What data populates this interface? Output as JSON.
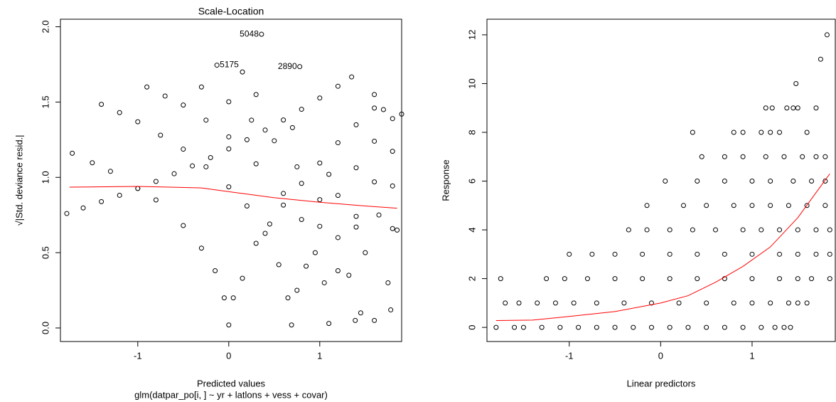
{
  "chart_data": [
    {
      "type": "scatter",
      "title": "Scale-Location",
      "xlabel": "Predicted values",
      "subtitle": "glm(datpar_po[i, ] ~ yr + latlons + vess + covar)",
      "ylabel": "√|Std. deviance resid.|",
      "xlim": [
        -1.85,
        1.9
      ],
      "ylim": [
        -0.09,
        2.05
      ],
      "xticks": [
        -1,
        0,
        1
      ],
      "yticks": [
        {
          "value": 0,
          "label": "0.0"
        },
        {
          "value": 0.5,
          "label": "0.5"
        },
        {
          "value": 1,
          "label": "1.0"
        },
        {
          "value": 1.5,
          "label": "1.5"
        },
        {
          "value": 2,
          "label": "2.0"
        }
      ],
      "color": "#000000",
      "x": [
        -1.78,
        -1.6,
        -1.4,
        -1.2,
        -1.0,
        -0.8,
        -0.6,
        -0.4,
        -0.2,
        0,
        0.2,
        0.4,
        0.6,
        0.8,
        1.0,
        1.2,
        1.35,
        -1.72,
        -1.5,
        -1.3,
        -1.0,
        -0.8,
        -0.5,
        -0.3,
        -0.15,
        -0.05,
        0,
        0.05,
        0.15,
        0.3,
        0.45,
        0.6,
        0.8,
        1.0,
        1.2,
        1.4,
        1.6,
        -1.4,
        -1.2,
        -1.0,
        -0.75,
        -0.5,
        -0.25,
        0,
        0.2,
        0.4,
        0.55,
        0.65,
        0.69,
        0.75,
        0.85,
        1.0,
        1.2,
        1.4,
        1.6,
        1.8,
        -0.9,
        -0.7,
        -0.5,
        -0.25,
        0,
        0.3,
        0.6,
        0.8,
        0.95,
        1.05,
        1.1,
        1.2,
        1.4,
        1.6,
        1.8,
        -0.3,
        0,
        0.25,
        0.5,
        0.75,
        1.0,
        1.2,
        1.32,
        1.39,
        1.5,
        1.65,
        1.8,
        0.3,
        0.7,
        1.1,
        1.4,
        1.6,
        1.8,
        1.75,
        1.85,
        1.7,
        1.9,
        1.6,
        0.15,
        1.45,
        1.78
      ],
      "y": [
        0.76,
        0.797,
        0.839,
        0.881,
        0.926,
        0.973,
        1.024,
        1.076,
        1.131,
        1.189,
        1.25,
        1.314,
        1.381,
        1.452,
        1.527,
        1.605,
        1.667,
        1.16,
        1.097,
        1.04,
        0.926,
        0.85,
        0.68,
        0.53,
        0.38,
        0.2,
        0.02,
        0.2,
        0.33,
        0.562,
        0.69,
        0.816,
        0.96,
        1.095,
        1.23,
        1.349,
        1.46,
        1.485,
        1.43,
        1.369,
        1.28,
        1.187,
        1.07,
        0.937,
        0.81,
        0.628,
        0.42,
        0.2,
        0.02,
        0.25,
        0.41,
        0.675,
        0.88,
        1.064,
        1.24,
        1.39,
        1.6,
        1.54,
        1.48,
        1.38,
        1.269,
        1.09,
        0.893,
        0.72,
        0.5,
        0.3,
        0.03,
        0.38,
        0.741,
        0.97,
        1.173,
        1.6,
        1.502,
        1.38,
        1.243,
        1.07,
        0.852,
        0.6,
        0.35,
        0.05,
        0.5,
        0.75,
        0.943,
        1.55,
        1.33,
        1.02,
        0.67,
        0.05,
        0.66,
        0.3,
        0.65,
        1.45,
        1.42,
        1.55,
        1.7,
        0.1,
        0.12
      ],
      "annotations": [
        {
          "text": "5048",
          "x": 0.36,
          "y": 1.95,
          "pos": "left"
        },
        {
          "text": "5175",
          "x": -0.13,
          "y": 1.745,
          "pos": "right"
        },
        {
          "text": "2890",
          "x": 0.78,
          "y": 1.735,
          "pos": "left"
        }
      ],
      "smooth": {
        "color": "#ff0000",
        "x": [
          -1.75,
          -1,
          -0.3,
          0,
          0.5,
          1,
          1.5,
          1.85
        ],
        "y": [
          0.935,
          0.94,
          0.93,
          0.905,
          0.865,
          0.835,
          0.81,
          0.795
        ]
      }
    },
    {
      "type": "scatter",
      "xlabel": "Linear predictors",
      "ylabel": "Response",
      "xlim": [
        -1.9,
        1.91
      ],
      "ylim": [
        -0.58,
        12.64
      ],
      "xticks": [
        -1,
        0,
        1
      ],
      "yticks": [
        0,
        2,
        4,
        6,
        8,
        10,
        12
      ],
      "color": "#000000",
      "x": [
        -1.8,
        -1.6,
        -1.5,
        -1.3,
        -1.1,
        -0.9,
        -0.7,
        -0.5,
        -0.3,
        -0.1,
        0.1,
        0.3,
        0.5,
        0.7,
        0.9,
        1.1,
        1.25,
        1.35,
        1.42,
        -1.7,
        -1.55,
        -1.35,
        -1.15,
        -0.95,
        -0.7,
        -0.4,
        -0.1,
        0.2,
        0.5,
        0.8,
        1.0,
        1.2,
        1.4,
        1.5,
        1.6,
        -1.75,
        -1.25,
        -1.05,
        -0.8,
        -0.5,
        -0.2,
        0.1,
        0.4,
        0.7,
        1.0,
        1.3,
        1.5,
        1.65,
        1.85,
        -1.0,
        -0.75,
        -0.5,
        -0.2,
        0.1,
        0.4,
        0.7,
        1.0,
        1.3,
        1.5,
        1.7,
        1.85,
        -0.35,
        -0.15,
        0.1,
        0.35,
        0.6,
        0.9,
        1.1,
        1.3,
        1.5,
        1.7,
        1.85,
        -0.15,
        0.25,
        0.5,
        0.8,
        1.0,
        1.2,
        1.4,
        1.6,
        1.8,
        0.05,
        0.4,
        0.7,
        1.0,
        1.2,
        1.45,
        1.65,
        1.8,
        0.45,
        0.7,
        0.9,
        1.15,
        1.35,
        1.55,
        1.7,
        1.8,
        0.35,
        0.8,
        0.9,
        1.1,
        1.2,
        1.3,
        1.6,
        1.15,
        1.22,
        1.38,
        1.45,
        1.5,
        1.7,
        1.48,
        1.75,
        1.82
      ],
      "y": [
        0,
        0,
        0,
        0,
        0,
        0,
        0,
        0,
        0,
        0,
        0,
        0,
        0,
        0,
        0,
        0,
        0,
        0,
        0,
        1,
        1,
        1,
        1,
        1,
        1,
        1,
        1,
        1,
        1,
        1,
        1,
        1,
        1,
        1,
        1,
        2,
        2,
        2,
        2,
        2,
        2,
        2,
        2,
        2,
        2,
        2,
        2,
        2,
        2,
        3,
        3,
        3,
        3,
        3,
        3,
        3,
        3,
        3,
        3,
        3,
        3,
        4,
        4,
        4,
        4,
        4,
        4,
        4,
        4,
        4,
        4,
        4,
        5,
        5,
        5,
        5,
        5,
        5,
        5,
        5,
        5,
        6,
        6,
        6,
        6,
        6,
        6,
        6,
        6,
        7,
        7,
        7,
        7,
        7,
        7,
        7,
        7,
        8,
        8,
        8,
        8,
        8,
        8,
        8,
        9,
        9,
        9,
        9,
        9,
        9,
        10,
        11,
        12
      ],
      "smooth": {
        "color": "#ff0000",
        "x": [
          -1.8,
          -1.4,
          -1,
          -0.5,
          0,
          0.3,
          0.6,
          0.9,
          1.2,
          1.5,
          1.85
        ],
        "y": [
          0.28,
          0.3,
          0.45,
          0.65,
          1.0,
          1.3,
          1.85,
          2.5,
          3.3,
          4.5,
          6.3
        ]
      }
    }
  ]
}
